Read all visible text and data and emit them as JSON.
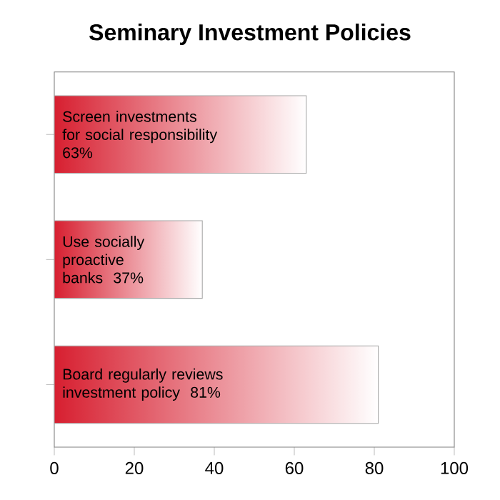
{
  "chart_data": {
    "type": "bar",
    "orientation": "horizontal",
    "title": "Seminary Investment Policies",
    "categories": [
      "Screen investments for social responsibility",
      "Use socially proactive banks",
      "Board regularly reviews investment policy"
    ],
    "values": [
      63,
      37,
      81
    ],
    "value_labels": [
      "63%",
      "37%",
      "81%"
    ],
    "color": "#d71f30",
    "xlim": [
      0,
      100
    ],
    "xticks": [
      0,
      20,
      40,
      60,
      80,
      100
    ],
    "tick_labels": "x",
    "grid": false
  }
}
